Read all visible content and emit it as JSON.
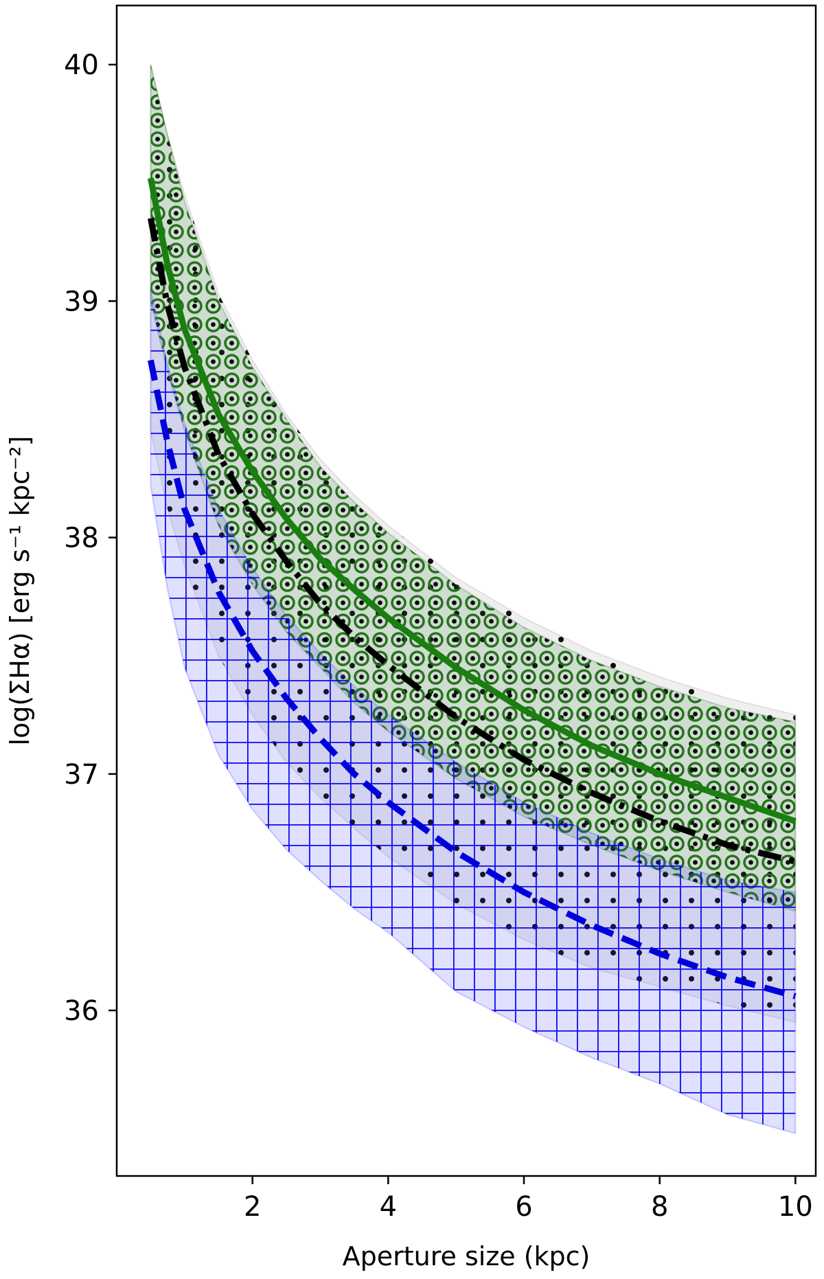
{
  "chart_data": {
    "type": "line",
    "xlabel": "Aperture size (kpc)",
    "ylabel": "log(ΣHα) [erg s⁻¹ kpc⁻²]",
    "xlim": [
      0.0,
      10.3
    ],
    "ylim": [
      35.3,
      40.25
    ],
    "xticks": [
      2,
      4,
      6,
      8,
      10
    ],
    "xtick_labels": [
      "2",
      "4",
      "6",
      "8",
      "10"
    ],
    "yticks": [
      36,
      37,
      38,
      39,
      40
    ],
    "ytick_labels": [
      "36",
      "37",
      "38",
      "39",
      "40"
    ],
    "grid": false,
    "legend": "none",
    "x": [
      0.5,
      0.75,
      1.0,
      1.5,
      2.0,
      2.5,
      3.0,
      3.5,
      4.0,
      5.0,
      6.0,
      7.0,
      8.0,
      9.0,
      10.0
    ],
    "series": [
      {
        "style": "solid",
        "color": "#1a7f10",
        "fill_color": "#2e7d32",
        "band_hatch": "o.",
        "values": [
          39.52,
          39.15,
          38.88,
          38.52,
          38.28,
          38.08,
          37.91,
          37.78,
          37.66,
          37.45,
          37.27,
          37.12,
          37.0,
          36.9,
          36.8
        ],
        "lower": [
          39.0,
          38.7,
          38.45,
          38.05,
          37.8,
          37.6,
          37.45,
          37.3,
          37.18,
          36.98,
          36.82,
          36.7,
          36.59,
          36.5,
          36.42
        ],
        "upper": [
          40.0,
          39.7,
          39.42,
          39.0,
          38.72,
          38.5,
          38.3,
          38.15,
          38.02,
          37.8,
          37.62,
          37.48,
          37.37,
          37.28,
          37.22
        ]
      },
      {
        "style": "dashdot",
        "color": "#000000",
        "fill_color": "#9e9e9e",
        "band_hatch": ".",
        "values": [
          39.35,
          38.98,
          38.72,
          38.35,
          38.1,
          37.9,
          37.72,
          37.58,
          37.46,
          37.24,
          37.06,
          36.92,
          36.8,
          36.7,
          36.63
        ],
        "lower": [
          38.45,
          38.12,
          37.88,
          37.5,
          37.25,
          37.05,
          36.9,
          36.77,
          36.65,
          36.45,
          36.3,
          36.18,
          36.1,
          36.02,
          35.95
        ],
        "upper": [
          40.0,
          39.7,
          39.45,
          39.03,
          38.75,
          38.52,
          38.33,
          38.18,
          38.05,
          37.83,
          37.66,
          37.52,
          37.41,
          37.32,
          37.25
        ]
      },
      {
        "style": "dashed",
        "color": "#0000dd",
        "fill_color": "#4040ff",
        "band_hatch": "+",
        "values": [
          38.75,
          38.4,
          38.12,
          37.77,
          37.52,
          37.32,
          37.15,
          37.0,
          36.88,
          36.67,
          36.5,
          36.36,
          36.24,
          36.14,
          36.06
        ],
        "lower": [
          38.22,
          37.78,
          37.45,
          37.08,
          36.85,
          36.68,
          36.55,
          36.43,
          36.33,
          36.08,
          35.93,
          35.8,
          35.69,
          35.56,
          35.48
        ],
        "upper": [
          39.05,
          38.73,
          38.48,
          38.12,
          37.87,
          37.67,
          37.51,
          37.37,
          37.25,
          37.05,
          36.88,
          36.75,
          36.64,
          36.55,
          36.5
        ]
      }
    ]
  }
}
